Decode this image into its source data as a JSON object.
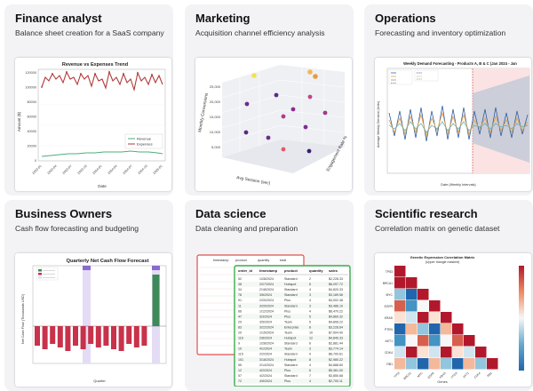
{
  "cards": [
    {
      "title": "Finance analyst",
      "subtitle": "Balance sheet creation for a SaaS company",
      "thumbnail": {
        "title": "Revenue vs Expenses Trend",
        "ylabel": "Amount ($)",
        "xlabel": "Date",
        "legend": [
          "Revenue",
          "Expenses"
        ],
        "yticks": [
          "120000",
          "100000",
          "80000",
          "60000",
          "40000",
          "20000",
          "0"
        ],
        "xticks": [
          "2023-01",
          "2023-04",
          "2023-07",
          "2023-10",
          "2024-01",
          "2024-04",
          "2024-07",
          "2024-10",
          "2025-01"
        ]
      }
    },
    {
      "title": "Marketing",
      "subtitle": "Acquisition channel efficiency analysis",
      "thumbnail": {
        "xlabel": "Avg Session (sec)",
        "ylabel": "Monthly Conversions",
        "zlabel": "Engagement Rate %",
        "yticks": [
          "25,000",
          "20,000",
          "15,000",
          "10,000",
          "5,000"
        ]
      }
    },
    {
      "title": "Operations",
      "subtitle": "Forecasting and inventory optimization",
      "thumbnail": {
        "title": "Weekly Demand Forecasting - Products A, B & C (Jan 2024 - Jan",
        "ylabel": "Average Weekly Demand (Units)",
        "xlabel": "Date (Weekly Intervals)"
      }
    },
    {
      "title": "Business Owners",
      "subtitle": "Cash flow forecasting and budgeting",
      "thumbnail": {
        "title": "Quarterly Net Cash Flow Forecast",
        "ylabel": "Net Cash Flow (Thousands USD)",
        "xlabel": "Quarter"
      }
    },
    {
      "title": "Data science",
      "subtitle": "Data cleaning and preparation",
      "thumbnail": {
        "back_headers": [
          "timestamp",
          "product",
          "quantity",
          "total"
        ],
        "front_headers": [
          "order_id",
          "timestamp",
          "product",
          "quantity",
          "sales"
        ],
        "rows": [
          [
            "52",
            "1/28/2024",
            "Standard",
            "2",
            "$2,228.33"
          ],
          [
            "48",
            "2/27/2024",
            "Hubspot",
            "6",
            "$6,097.72"
          ],
          [
            "34",
            "2/18/2024",
            "Standard",
            "4",
            "$4,820.33"
          ],
          [
            "78",
            "3/6/2024",
            "Standard",
            "3",
            "$3,189.56"
          ],
          [
            "91",
            "2/20/2024",
            "Plus",
            "4",
            "$4,002.48"
          ],
          [
            "11",
            "3/29/2024",
            "Standard",
            "3",
            "$3,486.10"
          ],
          [
            "66",
            "1/12/2024",
            "Plus",
            "4",
            "$6,470.22"
          ],
          [
            "47",
            "3/3/2024",
            "Plus",
            "5",
            "$4,869.32"
          ],
          [
            "29",
            "3/5/2024",
            "Team",
            "5",
            "$4,808.22"
          ],
          [
            "83",
            "3/22/2024",
            "Enterprise",
            "8",
            "$3,228.64"
          ],
          [
            "20",
            "1/15/2024",
            "Team",
            "10",
            "$7,504.90"
          ],
          [
            "116",
            "2/8/2024",
            "Hubspot",
            "12",
            "$4,840.33"
          ],
          [
            "9",
            "1/28/2024",
            "Standard",
            "6",
            "$2,881.44"
          ],
          [
            "10",
            "4/1/2024",
            "Team",
            "3",
            "$3,774.14"
          ],
          [
            "115",
            "2/2/2024",
            "Standard",
            "9",
            "$6,700.61"
          ],
          [
            "101",
            "3/18/2024",
            "Hubspot",
            "8",
            "$2,980.22"
          ],
          [
            "55",
            "2/14/2024",
            "Standard",
            "4",
            "$4,888.60"
          ],
          [
            "12",
            "4/2/2024",
            "Plus",
            "6",
            "$5,361.00"
          ],
          [
            "57",
            "4/2/2024",
            "Standard",
            "7",
            "$3,850.68"
          ],
          [
            "72",
            "4/5/2024",
            "Plus",
            "4",
            "$2,700.11"
          ]
        ]
      }
    },
    {
      "title": "Scientific research",
      "subtitle": "Correlation matrix on genetic dataset",
      "thumbnail": {
        "title": "Genetic Expression Correlation Matrix",
        "subtitle": "(Upper triangle masked)",
        "xlabel": "Genes",
        "genes": [
          "TP53",
          "BRCA1",
          "MYC",
          "EGFR",
          "KRAS",
          "PTEN",
          "AKT1",
          "CDK4",
          "RB1"
        ]
      }
    }
  ]
}
